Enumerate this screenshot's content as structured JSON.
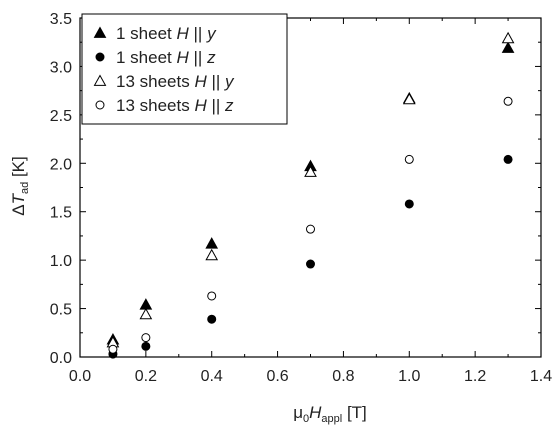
{
  "chart_data": {
    "type": "scatter",
    "xlim": [
      0.0,
      1.4
    ],
    "ylim": [
      0.0,
      3.5
    ],
    "xticks": [
      "0.0",
      "0.2",
      "0.4",
      "0.6",
      "0.8",
      "1.0",
      "1.2",
      "1.4"
    ],
    "yticks": [
      "0.0",
      "0.5",
      "1.0",
      "1.5",
      "2.0",
      "2.5",
      "3.0",
      "3.5"
    ],
    "xlabel": {
      "prefix": "μ",
      "sub1": "0",
      "mid": "H",
      "sub2": "appl",
      "suffix": " [T]"
    },
    "ylabel": {
      "prefix": "Δ",
      "mid": "T",
      "sub": "ad",
      "suffix": " [K]"
    },
    "legend_position": "top-left",
    "series": [
      {
        "name": {
          "count": "1 sheet",
          "H": "H",
          "axis": "y"
        },
        "marker": "triangle",
        "filled": true,
        "x": [
          0.1,
          0.2,
          0.4,
          0.7,
          1.0,
          1.3
        ],
        "y": [
          0.18,
          0.54,
          1.17,
          1.97,
          2.67,
          3.19
        ]
      },
      {
        "name": {
          "count": "1 sheet",
          "H": "H",
          "axis": "z"
        },
        "marker": "circle",
        "filled": true,
        "x": [
          0.1,
          0.2,
          0.4,
          0.7,
          1.0,
          1.3
        ],
        "y": [
          0.03,
          0.11,
          0.39,
          0.96,
          1.58,
          2.04
        ]
      },
      {
        "name": {
          "count": "13 sheets",
          "H": "H",
          "axis": "y"
        },
        "marker": "triangle",
        "filled": false,
        "x": [
          0.1,
          0.2,
          0.4,
          0.7,
          1.0,
          1.3
        ],
        "y": [
          0.15,
          0.44,
          1.05,
          1.91,
          2.66,
          3.29
        ]
      },
      {
        "name": {
          "count": "13 sheets",
          "H": "H",
          "axis": "z"
        },
        "marker": "circle",
        "filled": false,
        "x": [
          0.1,
          0.2,
          0.4,
          0.7,
          1.0,
          1.3
        ],
        "y": [
          0.08,
          0.2,
          0.63,
          1.32,
          2.04,
          2.64
        ]
      }
    ]
  }
}
